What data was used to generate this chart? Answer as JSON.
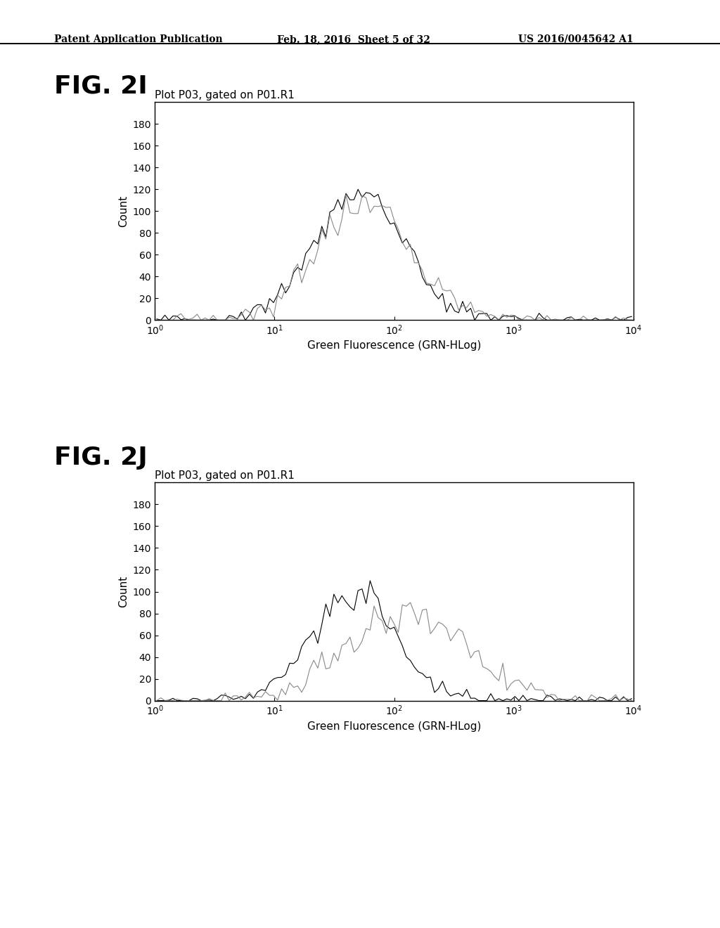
{
  "fig_label_I": "FIG. 2I",
  "fig_label_J": "FIG. 2J",
  "plot_title": "Plot P03, gated on P01.R1",
  "xlabel": "Green Fluorescence (GRN-HLog)",
  "ylabel": "Count",
  "ylim": [
    0,
    200
  ],
  "yticks": [
    0,
    20,
    40,
    60,
    80,
    100,
    120,
    140,
    160,
    180
  ],
  "xlim_log": [
    1.0,
    10000.0
  ],
  "header_left": "Patent Application Publication",
  "header_center": "Feb. 18, 2016  Sheet 5 of 32",
  "header_right": "US 2016/0045642 A1",
  "background_color": "#ffffff",
  "line_color_dark": "#000000",
  "line_color_light": "#888888",
  "line_width": 0.8,
  "fig_label_fontsize": 26,
  "header_fontsize": 10,
  "axis_fontsize": 11,
  "tick_fontsize": 10
}
